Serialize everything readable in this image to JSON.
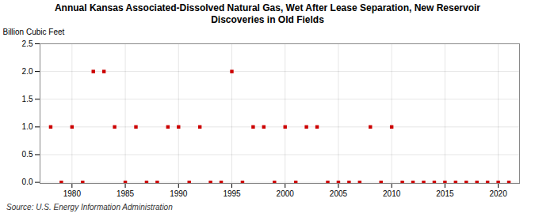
{
  "chart_data": {
    "type": "scatter",
    "title": "Annual Kansas Associated-Dissolved Natural Gas, Wet After Lease Separation, New Reservoir\nDiscoveries in Old Fields",
    "ylabel": "Billion Cubic Feet",
    "annotations": [
      "Source: U.S. Energy Information Administration"
    ],
    "x": [
      1978,
      1979,
      1980,
      1981,
      1982,
      1983,
      1984,
      1985,
      1986,
      1987,
      1988,
      1989,
      1990,
      1991,
      1992,
      1993,
      1994,
      1995,
      1996,
      1997,
      1998,
      1999,
      2000,
      2001,
      2002,
      2003,
      2004,
      2005,
      2006,
      2007,
      2008,
      2009,
      2010,
      2011,
      2012,
      2013,
      2014,
      2015,
      2016,
      2017,
      2018,
      2019,
      2020,
      2021
    ],
    "values": [
      1.0,
      0.0,
      1.0,
      0.0,
      2.0,
      2.0,
      1.0,
      0.0,
      1.0,
      0.0,
      0.0,
      1.0,
      1.0,
      0.0,
      1.0,
      0.0,
      0.0,
      2.0,
      0.0,
      1.0,
      1.0,
      0.0,
      1.0,
      0.0,
      1.0,
      1.0,
      0.0,
      0.0,
      0.0,
      0.0,
      1.0,
      0.0,
      1.0,
      0.0,
      0.0,
      0.0,
      0.0,
      0.0,
      0.0,
      0.0,
      0.0,
      0.0,
      0.0,
      0.0
    ],
    "color": "#cc0000",
    "marker": "square",
    "xlim": [
      1977,
      2022
    ],
    "xticks": [
      1980,
      1985,
      1990,
      1995,
      2000,
      2005,
      2010,
      2015,
      2020
    ],
    "ylim": [
      -0.02,
      2.5
    ],
    "yticks": [
      {
        "value": 0.0,
        "label": "0.0"
      },
      0.5,
      {
        "value": 1.0,
        "label": "1.0"
      },
      1.5,
      {
        "value": 2.0,
        "label": "2.0"
      },
      2.5
    ],
    "grid": true
  }
}
